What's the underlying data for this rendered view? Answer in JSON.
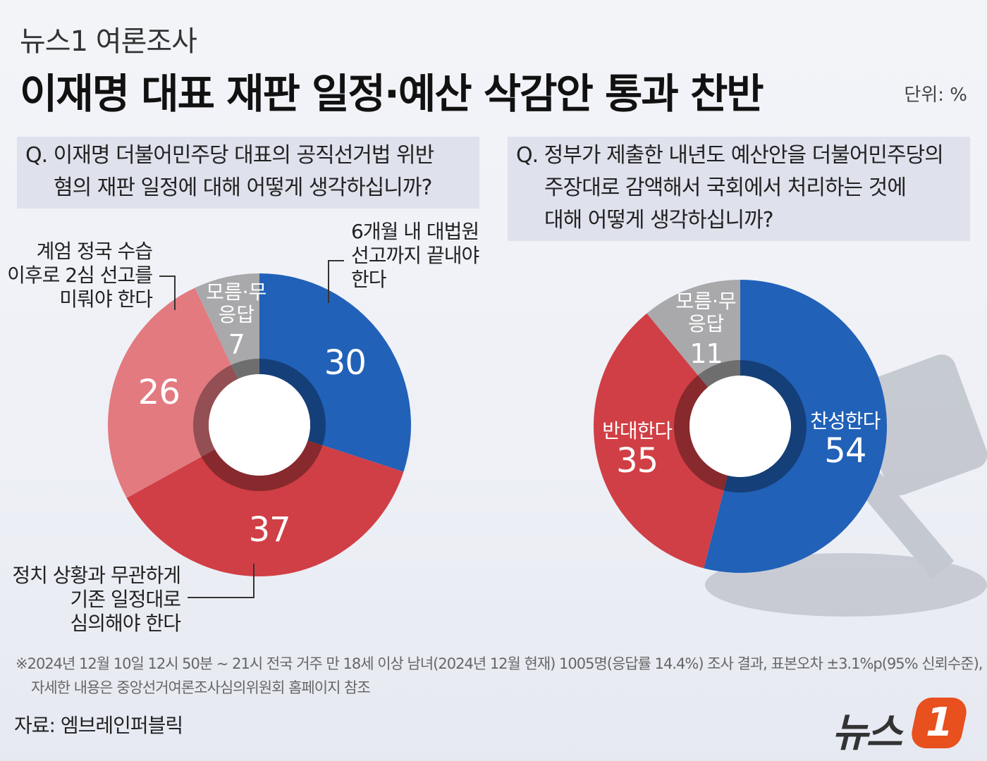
{
  "header": {
    "kicker": "뉴스1 여론조사",
    "title": "이재명 대표 재판 일정·예산 삭감안 통과 찬반",
    "unit": "단위: %"
  },
  "colors": {
    "blue": "#2161b8",
    "red": "#d03f45",
    "light_red": "#e27a80",
    "gray": "#a9a9ab"
  },
  "chart_data": [
    {
      "type": "pie",
      "donut": true,
      "question": [
        "Q. 이재명 더불어민주당 대표의 공직선거법 위반",
        "혐의 재판 일정에 대해 어떻게 생각하십니까?"
      ],
      "slices": [
        {
          "label": "6개월 내 대법원 선고까지 끝내야 한다",
          "label_lines": [
            "6개월 내 대법원",
            "선고까지 끝내야",
            "한다"
          ],
          "value": 30,
          "color": "#2161b8"
        },
        {
          "label": "정치 상황과 무관하게 기존 일정대로 심의해야 한다",
          "label_lines": [
            "정치 상황과 무관하게",
            "기존 일정대로",
            "심의해야 한다"
          ],
          "value": 37,
          "color": "#d03f45"
        },
        {
          "label": "계엄 정국 수습 이후로 2심 선고를 미뤄야 한다",
          "label_lines": [
            "계엄 정국 수습",
            "이후로 2심 선고를",
            "미뤄야 한다"
          ],
          "value": 26,
          "color": "#e27a80"
        },
        {
          "label": "모름·무응답",
          "label_lines": [
            "모름·",
            "무응답"
          ],
          "value": 7,
          "color": "#a9a9ab"
        }
      ]
    },
    {
      "type": "pie",
      "donut": true,
      "question": [
        "Q. 정부가 제출한 내년도 예산안을 더불어민주당의",
        "주장대로 감액해서 국회에서 처리하는 것에",
        "대해 어떻게 생각하십니까?"
      ],
      "slices": [
        {
          "label": "찬성한다",
          "value": 54,
          "color": "#2161b8"
        },
        {
          "label": "반대한다",
          "value": 35,
          "color": "#d03f45"
        },
        {
          "label": "모름·무응답",
          "label_lines": [
            "모름·",
            "무응답"
          ],
          "value": 11,
          "color": "#a9a9ab"
        }
      ]
    }
  ],
  "footnote": [
    "※2024년 12월 10일 12시 50분 ~ 21시 전국 거주 만 18세 이상 남녀(2024년 12월 현재) 1005명(응답률 14.4%)  조사 결과, 표본오차 ±3.1%p(95% 신뢰수준),",
    "자세한 내용은 중앙선거여론조사심의위원회 홈페이지 참조"
  ],
  "source": "자료: 엠브레인퍼블릭",
  "logo": {
    "text": "뉴스",
    "mark": "1"
  }
}
